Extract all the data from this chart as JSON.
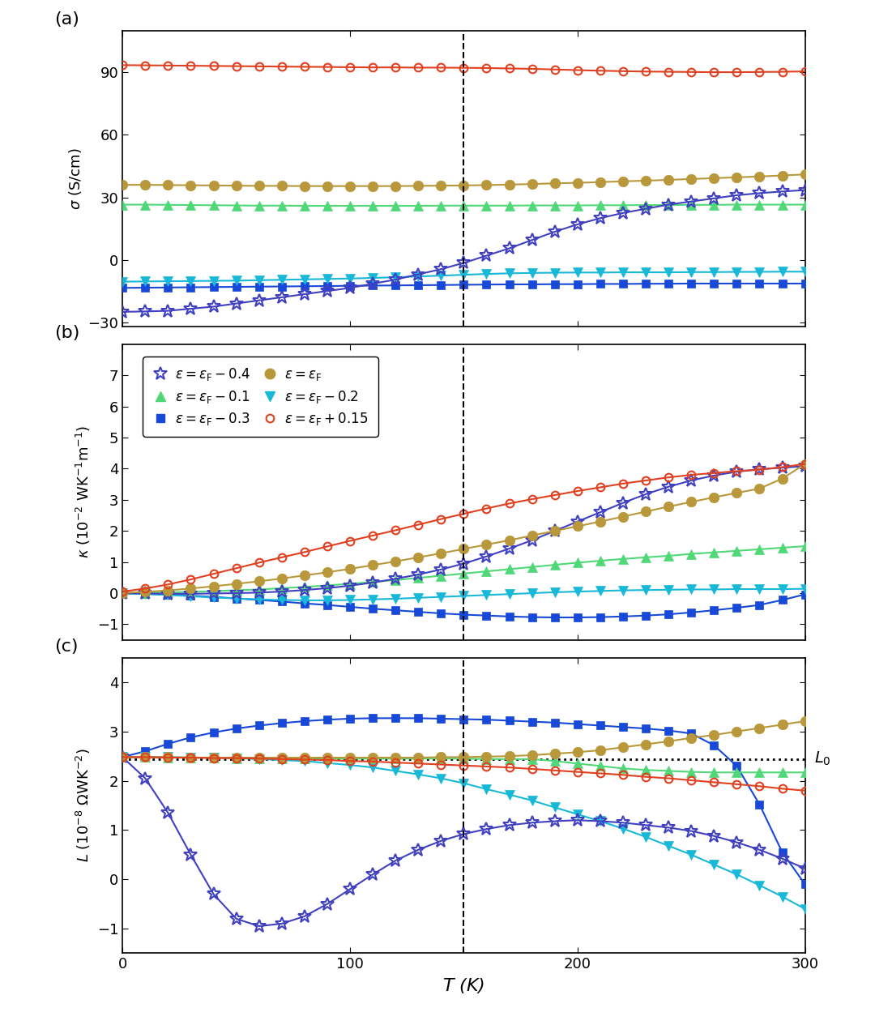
{
  "T": [
    0,
    10,
    20,
    30,
    40,
    50,
    60,
    70,
    80,
    90,
    100,
    110,
    120,
    130,
    140,
    150,
    160,
    170,
    180,
    190,
    200,
    210,
    220,
    230,
    240,
    250,
    260,
    270,
    280,
    290,
    300
  ],
  "sigma": {
    "eF_p015": [
      93.5,
      93.4,
      93.3,
      93.2,
      93.1,
      93.0,
      92.9,
      92.8,
      92.7,
      92.6,
      92.5,
      92.4,
      92.4,
      92.3,
      92.3,
      92.2,
      92.1,
      91.9,
      91.7,
      91.4,
      91.1,
      90.8,
      90.6,
      90.4,
      90.3,
      90.2,
      90.1,
      90.1,
      90.2,
      90.3,
      90.5
    ],
    "eF": [
      36.0,
      36.0,
      35.9,
      35.8,
      35.7,
      35.6,
      35.5,
      35.5,
      35.4,
      35.4,
      35.4,
      35.4,
      35.4,
      35.5,
      35.6,
      35.7,
      35.9,
      36.1,
      36.4,
      36.7,
      37.0,
      37.3,
      37.7,
      38.0,
      38.4,
      38.8,
      39.2,
      39.6,
      40.0,
      40.5,
      41.0
    ],
    "eF_m01": [
      26.5,
      26.5,
      26.4,
      26.3,
      26.2,
      26.1,
      26.0,
      26.0,
      25.9,
      25.9,
      25.9,
      25.9,
      25.9,
      25.9,
      26.0,
      26.0,
      26.0,
      26.0,
      26.1,
      26.1,
      26.1,
      26.2,
      26.2,
      26.3,
      26.3,
      26.4,
      26.4,
      26.5,
      26.5,
      26.5,
      26.5
    ],
    "eF_m02": [
      -10.5,
      -10.4,
      -10.3,
      -10.2,
      -10.1,
      -10.0,
      -9.8,
      -9.6,
      -9.4,
      -9.2,
      -9.0,
      -8.7,
      -8.4,
      -8.0,
      -7.6,
      -7.2,
      -6.8,
      -6.5,
      -6.3,
      -6.2,
      -6.1,
      -6.1,
      -6.0,
      -6.0,
      -6.0,
      -5.9,
      -5.9,
      -5.8,
      -5.8,
      -5.7,
      -5.7
    ],
    "eF_m03": [
      -13.5,
      -13.4,
      -13.3,
      -13.2,
      -13.1,
      -13.0,
      -12.9,
      -12.8,
      -12.7,
      -12.6,
      -12.5,
      -12.4,
      -12.3,
      -12.2,
      -12.1,
      -12.0,
      -11.9,
      -11.8,
      -11.8,
      -11.7,
      -11.7,
      -11.6,
      -11.6,
      -11.5,
      -11.5,
      -11.4,
      -11.4,
      -11.4,
      -11.4,
      -11.4,
      -11.4
    ],
    "eF_m04": [
      -25.0,
      -24.8,
      -24.5,
      -23.5,
      -22.5,
      -21.0,
      -19.5,
      -18.0,
      -16.5,
      -15.0,
      -13.5,
      -11.5,
      -9.5,
      -7.0,
      -4.5,
      -1.5,
      2.0,
      5.5,
      9.5,
      13.5,
      17.0,
      20.0,
      22.5,
      24.5,
      26.5,
      28.0,
      29.5,
      31.0,
      32.0,
      32.8,
      33.5
    ]
  },
  "kappa": {
    "eF_p015": [
      0.05,
      0.15,
      0.28,
      0.44,
      0.62,
      0.8,
      0.98,
      1.15,
      1.32,
      1.5,
      1.68,
      1.85,
      2.02,
      2.2,
      2.38,
      2.55,
      2.72,
      2.88,
      3.02,
      3.15,
      3.28,
      3.4,
      3.52,
      3.62,
      3.72,
      3.8,
      3.86,
      3.92,
      3.97,
      4.05,
      4.15
    ],
    "eF": [
      0.01,
      0.04,
      0.09,
      0.15,
      0.22,
      0.3,
      0.38,
      0.47,
      0.57,
      0.67,
      0.78,
      0.9,
      1.02,
      1.15,
      1.28,
      1.42,
      1.56,
      1.7,
      1.85,
      2.0,
      2.15,
      2.3,
      2.46,
      2.62,
      2.78,
      2.93,
      3.08,
      3.22,
      3.36,
      3.68,
      4.15
    ],
    "eF_m01": [
      0.003,
      0.012,
      0.025,
      0.042,
      0.065,
      0.092,
      0.12,
      0.16,
      0.2,
      0.25,
      0.3,
      0.36,
      0.42,
      0.49,
      0.56,
      0.63,
      0.7,
      0.77,
      0.84,
      0.91,
      0.98,
      1.04,
      1.1,
      1.15,
      1.2,
      1.26,
      1.31,
      1.36,
      1.41,
      1.46,
      1.51
    ],
    "eF_m02": [
      -0.01,
      -0.03,
      -0.06,
      -0.1,
      -0.14,
      -0.17,
      -0.2,
      -0.22,
      -0.23,
      -0.23,
      -0.22,
      -0.2,
      -0.18,
      -0.15,
      -0.12,
      -0.09,
      -0.06,
      -0.03,
      0.0,
      0.03,
      0.05,
      0.07,
      0.09,
      0.1,
      0.11,
      0.12,
      0.12,
      0.13,
      0.13,
      0.13,
      0.14
    ],
    "eF_m03": [
      -0.005,
      -0.02,
      -0.04,
      -0.08,
      -0.12,
      -0.17,
      -0.22,
      -0.27,
      -0.33,
      -0.38,
      -0.44,
      -0.5,
      -0.55,
      -0.6,
      -0.65,
      -0.69,
      -0.72,
      -0.75,
      -0.77,
      -0.78,
      -0.78,
      -0.77,
      -0.75,
      -0.72,
      -0.68,
      -0.62,
      -0.55,
      -0.47,
      -0.38,
      -0.22,
      -0.04
    ],
    "eF_m04": [
      -0.003,
      -0.01,
      -0.02,
      -0.02,
      -0.01,
      0.0,
      0.02,
      0.05,
      0.1,
      0.16,
      0.24,
      0.34,
      0.46,
      0.6,
      0.76,
      0.95,
      1.18,
      1.43,
      1.7,
      2.0,
      2.3,
      2.6,
      2.9,
      3.18,
      3.42,
      3.62,
      3.78,
      3.9,
      3.98,
      4.03,
      4.08
    ]
  },
  "L": {
    "eF_p015": [
      2.48,
      2.48,
      2.47,
      2.47,
      2.46,
      2.46,
      2.45,
      2.44,
      2.43,
      2.42,
      2.4,
      2.39,
      2.37,
      2.35,
      2.33,
      2.31,
      2.29,
      2.27,
      2.24,
      2.21,
      2.18,
      2.15,
      2.12,
      2.08,
      2.05,
      2.01,
      1.97,
      1.93,
      1.89,
      1.84,
      1.8
    ],
    "eF": [
      2.48,
      2.48,
      2.48,
      2.47,
      2.47,
      2.47,
      2.47,
      2.47,
      2.47,
      2.47,
      2.47,
      2.47,
      2.47,
      2.47,
      2.48,
      2.48,
      2.49,
      2.5,
      2.52,
      2.55,
      2.58,
      2.62,
      2.68,
      2.74,
      2.8,
      2.87,
      2.93,
      3.0,
      3.07,
      3.14,
      3.21
    ],
    "eF_m01": [
      2.48,
      2.48,
      2.47,
      2.47,
      2.47,
      2.46,
      2.46,
      2.46,
      2.46,
      2.45,
      2.45,
      2.45,
      2.45,
      2.45,
      2.45,
      2.45,
      2.44,
      2.44,
      2.44,
      2.4,
      2.35,
      2.3,
      2.25,
      2.22,
      2.2,
      2.18,
      2.17,
      2.17,
      2.17,
      2.17,
      2.17
    ],
    "eF_m02": [
      2.48,
      2.48,
      2.48,
      2.47,
      2.47,
      2.46,
      2.44,
      2.42,
      2.4,
      2.36,
      2.32,
      2.27,
      2.2,
      2.13,
      2.05,
      1.95,
      1.83,
      1.72,
      1.6,
      1.46,
      1.32,
      1.18,
      1.03,
      0.86,
      0.68,
      0.5,
      0.3,
      0.1,
      -0.12,
      -0.35,
      -0.6
    ],
    "eF_m03": [
      2.48,
      2.6,
      2.75,
      2.88,
      2.98,
      3.06,
      3.12,
      3.17,
      3.21,
      3.24,
      3.26,
      3.27,
      3.27,
      3.27,
      3.26,
      3.25,
      3.24,
      3.22,
      3.2,
      3.18,
      3.15,
      3.12,
      3.09,
      3.06,
      3.02,
      2.96,
      2.72,
      2.3,
      1.52,
      0.55,
      -0.1
    ],
    "eF_m04": [
      2.48,
      2.05,
      1.35,
      0.5,
      -0.3,
      -0.8,
      -0.95,
      -0.9,
      -0.75,
      -0.5,
      -0.2,
      0.1,
      0.38,
      0.6,
      0.78,
      0.92,
      1.02,
      1.1,
      1.15,
      1.18,
      1.2,
      1.18,
      1.15,
      1.1,
      1.05,
      0.98,
      0.88,
      0.75,
      0.6,
      0.42,
      0.22
    ]
  },
  "colors": {
    "eF_p015": "#e04020",
    "eF": "#b8983a",
    "eF_m01": "#50d878",
    "eF_m02": "#18b8d8",
    "eF_m03": "#1848d8",
    "eF_m04": "#4040c0"
  },
  "vline_x": 150,
  "L0_value": 2.44,
  "panel_labels": [
    "(a)",
    "(b)",
    "(c)"
  ],
  "ylabel_a": "$\\sigma$ (S/cm)",
  "ylabel_b": "$\\kappa$ (10$^{-2}$ WK$^{-1}$m$^{-1}$)",
  "ylabel_c": "$L$ (10$^{-8}$ $\\Omega$WK$^{-2}$)",
  "xlabel": "$T$ (K)",
  "ylim_a": [
    -32,
    110
  ],
  "ylim_b": [
    -1.5,
    8.0
  ],
  "ylim_c": [
    -1.5,
    4.5
  ],
  "yticks_a": [
    -30,
    0,
    30,
    60,
    90
  ],
  "yticks_b": [
    -1,
    0,
    1,
    2,
    3,
    4,
    5,
    6,
    7
  ],
  "yticks_c": [
    -1,
    0,
    1,
    2,
    3,
    4
  ],
  "xlim": [
    0,
    300
  ],
  "xticks": [
    0,
    100,
    200,
    300
  ],
  "legend_labels": {
    "eF_m04": "$\\varepsilon = \\varepsilon_{\\rm F} - 0.4$",
    "eF_m03": "$\\varepsilon = \\varepsilon_{\\rm F} - 0.3$",
    "eF_m02": "$\\varepsilon = \\varepsilon_{\\rm F} - 0.2$",
    "eF_m01": "$\\varepsilon = \\varepsilon_{\\rm F} - 0.1$",
    "eF": "$\\varepsilon = \\varepsilon_{\\rm F}$",
    "eF_p015": "$\\varepsilon = \\varepsilon_{\\rm F} + 0.15$"
  },
  "markers": {
    "eF_p015": "o",
    "eF": "o",
    "eF_m01": "^",
    "eF_m02": "v",
    "eF_m03": "s",
    "eF_m04": "*"
  },
  "marker_fill": {
    "eF_p015": false,
    "eF": true,
    "eF_m01": true,
    "eF_m02": true,
    "eF_m03": true,
    "eF_m04": false
  },
  "markersize": {
    "eF_p015": 7,
    "eF": 9,
    "eF_m01": 8,
    "eF_m02": 8,
    "eF_m03": 7,
    "eF_m04": 12
  }
}
